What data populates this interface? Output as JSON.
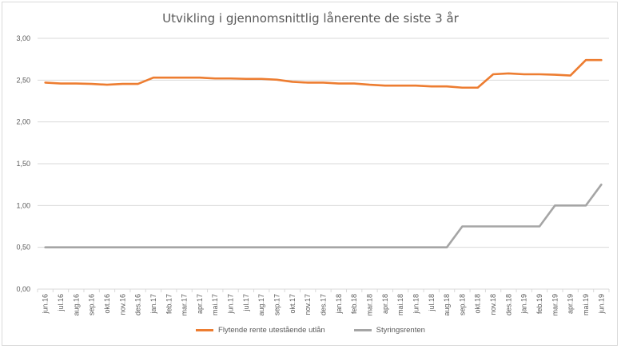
{
  "chart_data": {
    "type": "line",
    "title": "Utvikling i gjennomsnittlig lånerente de siste 3 år",
    "categories": [
      "jun.16",
      "jul.16",
      "aug.16",
      "sep.16",
      "okt.16",
      "nov.16",
      "des.16",
      "jan.17",
      "feb.17",
      "mar.17",
      "apr.17",
      "mai.17",
      "jun.17",
      "jul.17",
      "aug.17",
      "sep.17",
      "okt.17",
      "nov.17",
      "des.17",
      "jan.18",
      "feb.18",
      "mar.18",
      "apr.18",
      "mai.18",
      "jun.18",
      "jul.18",
      "aug.18",
      "sep.18",
      "okt.18",
      "nov.18",
      "des.18",
      "jan.19",
      "feb.19",
      "mar.19",
      "apr.19",
      "mai.19",
      "jun.19"
    ],
    "series": [
      {
        "name": "Flytende rente utestående utlån",
        "color": "#ed7d31",
        "values": [
          2.47,
          2.46,
          2.46,
          2.455,
          2.445,
          2.455,
          2.455,
          2.53,
          2.53,
          2.53,
          2.53,
          2.52,
          2.52,
          2.515,
          2.515,
          2.505,
          2.48,
          2.47,
          2.47,
          2.46,
          2.46,
          2.445,
          2.435,
          2.435,
          2.435,
          2.425,
          2.425,
          2.41,
          2.41,
          2.57,
          2.58,
          2.57,
          2.57,
          2.565,
          2.555,
          2.74,
          2.74
        ]
      },
      {
        "name": "Styringsrenten",
        "color": "#a5a5a5",
        "values": [
          0.5,
          0.5,
          0.5,
          0.5,
          0.5,
          0.5,
          0.5,
          0.5,
          0.5,
          0.5,
          0.5,
          0.5,
          0.5,
          0.5,
          0.5,
          0.5,
          0.5,
          0.5,
          0.5,
          0.5,
          0.5,
          0.5,
          0.5,
          0.5,
          0.5,
          0.5,
          0.5,
          0.75,
          0.75,
          0.75,
          0.75,
          0.75,
          0.75,
          1.0,
          1.0,
          1.0,
          1.25
        ]
      }
    ],
    "ylim": [
      0,
      3
    ],
    "yticks": [
      "0,00",
      "0,50",
      "1,00",
      "1,50",
      "2,00",
      "2,50",
      "3,00"
    ],
    "grid": true,
    "legend_position": "bottom"
  }
}
